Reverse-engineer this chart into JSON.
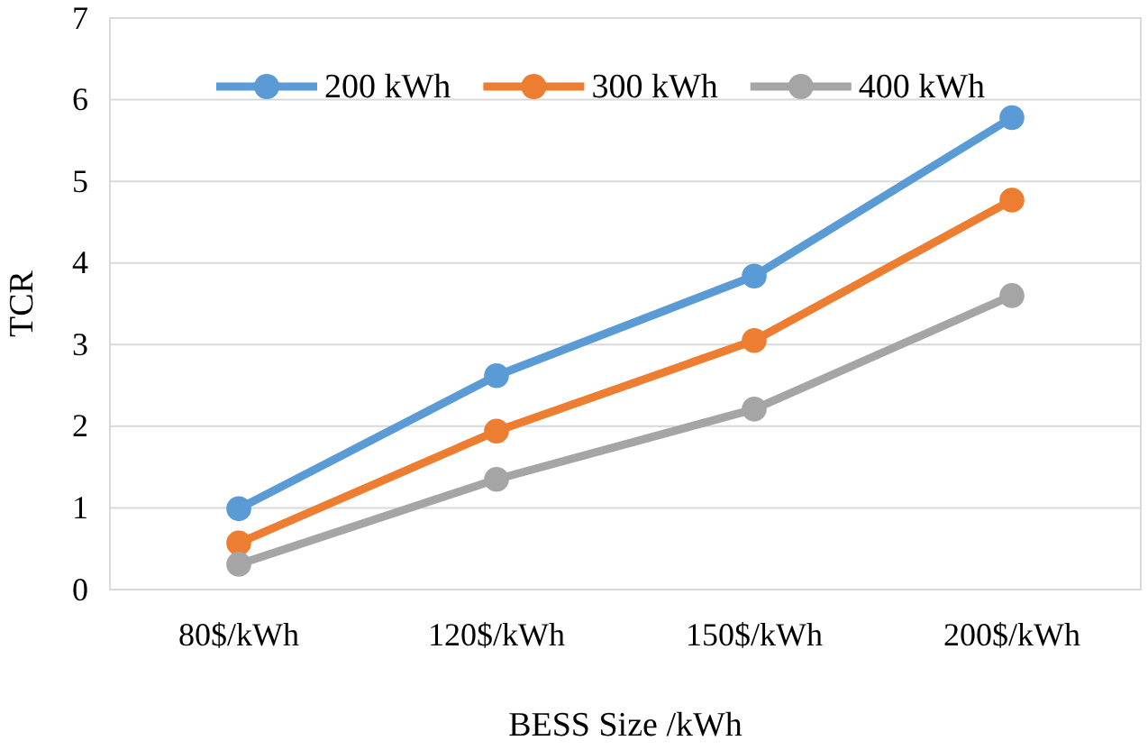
{
  "chart_data": {
    "type": "line",
    "xlabel": "BESS Size /kWh",
    "ylabel": "TCR",
    "categories": [
      "80$/kWh",
      "120$/kWh",
      "150$/kWh",
      "200$/kWh"
    ],
    "series": [
      {
        "name": "200 kWh",
        "color": "#5b9bd5",
        "values": [
          0.99,
          2.62,
          3.84,
          5.78
        ]
      },
      {
        "name": "300 kWh",
        "color": "#ed7d31",
        "values": [
          0.57,
          1.94,
          3.05,
          4.77
        ]
      },
      {
        "name": "400 kWh",
        "color": "#a5a5a5",
        "values": [
          0.31,
          1.35,
          2.21,
          3.6
        ]
      }
    ],
    "ylim": [
      0,
      7
    ],
    "yticks": [
      0,
      1,
      2,
      3,
      4,
      5,
      6,
      7
    ],
    "grid": "y",
    "legend": "top",
    "marker": "circle",
    "line_style": "solid"
  }
}
